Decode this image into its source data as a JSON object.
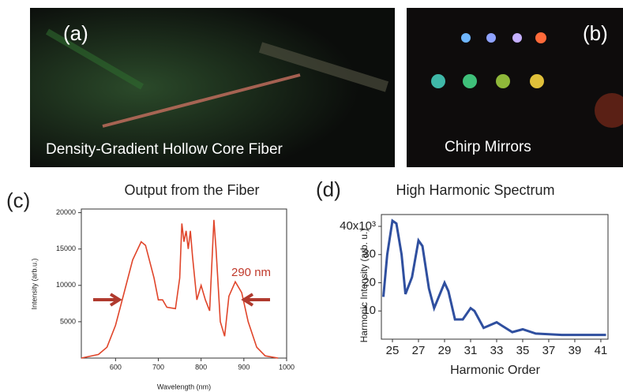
{
  "panels": {
    "a": {
      "label": "(a)",
      "caption": "Density-Gradient Hollow Core Fiber"
    },
    "b": {
      "label": "(b)",
      "caption": "Chirp Mirrors"
    }
  },
  "chart_data": [
    {
      "type": "line",
      "panel_label": "(c)",
      "title": "Output from the Fiber",
      "x_label": "Wavelength (nm)",
      "y_label": "Intensity (arb.u.)",
      "annotations": [
        "290 nm"
      ],
      "x": [
        520,
        560,
        580,
        600,
        620,
        640,
        660,
        670,
        690,
        700,
        710,
        720,
        740,
        750,
        755,
        760,
        765,
        770,
        775,
        780,
        790,
        800,
        810,
        820,
        830,
        835,
        845,
        855,
        865,
        880,
        895,
        910,
        930,
        950,
        980
      ],
      "series": [
        {
          "color": "#e0452a",
          "values": [
            0,
            500,
            1500,
            4500,
            9000,
            13500,
            16000,
            15500,
            11000,
            8000,
            8000,
            7000,
            6800,
            11000,
            18500,
            16000,
            17500,
            15000,
            17500,
            14000,
            8000,
            10000,
            8000,
            6500,
            19000,
            15000,
            5000,
            3000,
            8500,
            10500,
            9000,
            5000,
            1500,
            300,
            0
          ]
        }
      ],
      "xlim": [
        520,
        1000
      ],
      "ylim": [
        0,
        20500
      ],
      "xticks": [
        600,
        700,
        800,
        900,
        1000
      ],
      "yticks": [
        5000,
        10000,
        15000,
        20000
      ]
    },
    {
      "type": "line",
      "panel_label": "(d)",
      "title": "High Harmonic Spectrum",
      "x_label": "Harmonic Order",
      "y_label": "Harmonic Intensity (arb. u.)",
      "x": [
        24.3,
        24.6,
        25,
        25.3,
        25.7,
        26,
        26.5,
        27,
        27.3,
        27.8,
        28.2,
        29,
        29.3,
        29.8,
        30.4,
        31,
        31.3,
        32,
        33,
        33.5,
        34.2,
        35,
        36,
        38,
        41,
        41.4
      ],
      "series": [
        {
          "color": "#2f4f9f",
          "values": [
            15,
            30,
            42,
            41,
            30,
            16,
            22,
            35,
            33,
            18,
            11,
            20,
            17,
            7,
            7,
            11,
            10,
            4,
            6,
            4.5,
            2.5,
            3.5,
            2,
            1.5,
            1.5,
            1.5
          ]
        }
      ],
      "xlim": [
        24.15,
        41.55
      ],
      "ylim": [
        0,
        44.2
      ],
      "xticks": [
        25,
        27,
        29,
        31,
        33,
        35,
        37,
        39,
        41
      ],
      "yticks": [
        10,
        20,
        30,
        {
          "value": 40,
          "label": "40x10³"
        }
      ]
    }
  ]
}
